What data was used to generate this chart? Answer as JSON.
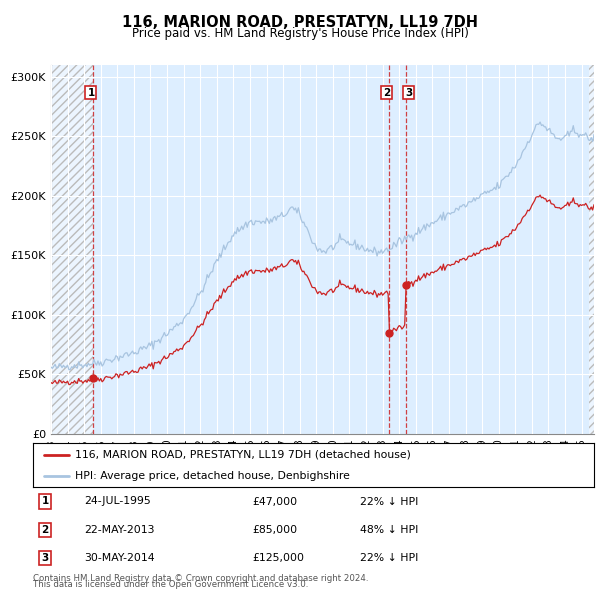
{
  "title": "116, MARION ROAD, PRESTATYN, LL19 7DH",
  "subtitle": "Price paid vs. HM Land Registry's House Price Index (HPI)",
  "ylim": [
    0,
    310000
  ],
  "yticks": [
    0,
    50000,
    100000,
    150000,
    200000,
    250000,
    300000
  ],
  "ytick_labels": [
    "£0",
    "£50K",
    "£100K",
    "£150K",
    "£200K",
    "£250K",
    "£300K"
  ],
  "hpi_color": "#a8c4e0",
  "price_color": "#cc2222",
  "bg_color": "#ddeeff",
  "grid_color": "#ffffff",
  "hpi_anchors": [
    [
      1993.0,
      55000
    ],
    [
      1994.0,
      57000
    ],
    [
      1995.0,
      58000
    ],
    [
      1996.0,
      60000
    ],
    [
      1997.0,
      64000
    ],
    [
      1998.0,
      68000
    ],
    [
      1999.0,
      74000
    ],
    [
      2000.0,
      84000
    ],
    [
      2001.0,
      96000
    ],
    [
      2002.0,
      118000
    ],
    [
      2003.0,
      145000
    ],
    [
      2004.0,
      168000
    ],
    [
      2005.0,
      178000
    ],
    [
      2006.0,
      178000
    ],
    [
      2007.0,
      183000
    ],
    [
      2007.5,
      190000
    ],
    [
      2008.0,
      184000
    ],
    [
      2008.5,
      170000
    ],
    [
      2009.0,
      156000
    ],
    [
      2009.5,
      153000
    ],
    [
      2010.0,
      157000
    ],
    [
      2010.5,
      162000
    ],
    [
      2011.0,
      160000
    ],
    [
      2011.5,
      158000
    ],
    [
      2012.0,
      155000
    ],
    [
      2012.5,
      153000
    ],
    [
      2013.0,
      153000
    ],
    [
      2013.5,
      156000
    ],
    [
      2014.0,
      161000
    ],
    [
      2014.5,
      165000
    ],
    [
      2015.0,
      169000
    ],
    [
      2016.0,
      177000
    ],
    [
      2017.0,
      185000
    ],
    [
      2018.0,
      192000
    ],
    [
      2019.0,
      200000
    ],
    [
      2020.0,
      208000
    ],
    [
      2021.0,
      225000
    ],
    [
      2021.5,
      238000
    ],
    [
      2022.0,
      252000
    ],
    [
      2022.5,
      262000
    ],
    [
      2023.0,
      255000
    ],
    [
      2023.5,
      248000
    ],
    [
      2024.0,
      248000
    ],
    [
      2024.5,
      255000
    ],
    [
      2025.0,
      252000
    ],
    [
      2025.4,
      248000
    ]
  ],
  "purchases": [
    {
      "t": 1995.56,
      "price": 47000
    },
    {
      "t": 2013.39,
      "price": 85000
    },
    {
      "t": 2014.41,
      "price": 125000
    }
  ],
  "legend_entries": [
    {
      "label": "116, MARION ROAD, PRESTATYN, LL19 7DH (detached house)",
      "color": "#cc2222"
    },
    {
      "label": "HPI: Average price, detached house, Denbighshire",
      "color": "#a8c4e0"
    }
  ],
  "table_rows": [
    {
      "num": "1",
      "date": "24-JUL-1995",
      "price": "£47,000",
      "hpi": "22% ↓ HPI"
    },
    {
      "num": "2",
      "date": "22-MAY-2013",
      "price": "£85,000",
      "hpi": "48% ↓ HPI"
    },
    {
      "num": "3",
      "date": "30-MAY-2014",
      "price": "£125,000",
      "hpi": "22% ↓ HPI"
    }
  ],
  "footer": "Contains HM Land Registry data © Crown copyright and database right 2024.\nThis data is licensed under the Open Government Licence v3.0.",
  "xmin": 1993.0,
  "xmax": 2025.75,
  "hatch_xmax": 1995.56,
  "hatch_xmin2": 2025.42,
  "noise_seed": 42,
  "noise_std": 1800
}
